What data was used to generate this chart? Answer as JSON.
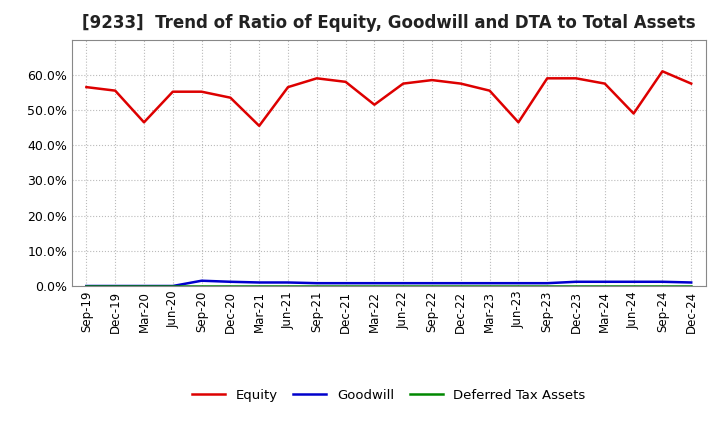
{
  "title": "[9233]  Trend of Ratio of Equity, Goodwill and DTA to Total Assets",
  "x_labels": [
    "Sep-19",
    "Dec-19",
    "Mar-20",
    "Jun-20",
    "Sep-20",
    "Dec-20",
    "Mar-21",
    "Jun-21",
    "Sep-21",
    "Dec-21",
    "Mar-22",
    "Jun-22",
    "Sep-22",
    "Dec-22",
    "Mar-23",
    "Jun-23",
    "Sep-23",
    "Dec-23",
    "Mar-24",
    "Jun-24",
    "Sep-24",
    "Dec-24"
  ],
  "equity": [
    56.5,
    55.5,
    46.5,
    55.2,
    55.2,
    53.5,
    45.5,
    56.5,
    59.0,
    58.0,
    51.5,
    57.5,
    58.5,
    57.5,
    55.5,
    46.5,
    59.0,
    59.0,
    57.5,
    49.0,
    61.0,
    57.5
  ],
  "goodwill": [
    0.0,
    0.0,
    0.0,
    0.0,
    1.5,
    1.2,
    1.0,
    1.0,
    0.8,
    0.8,
    0.8,
    0.8,
    0.8,
    0.8,
    0.8,
    0.8,
    0.8,
    1.2,
    1.2,
    1.2,
    1.2,
    1.0
  ],
  "dta": [
    0.1,
    0.1,
    0.1,
    0.1,
    0.1,
    0.1,
    0.1,
    0.1,
    0.1,
    0.1,
    0.1,
    0.1,
    0.1,
    0.1,
    0.1,
    0.1,
    0.1,
    0.1,
    0.1,
    0.1,
    0.1,
    0.1
  ],
  "equity_color": "#dd0000",
  "goodwill_color": "#0000cc",
  "dta_color": "#008800",
  "background_color": "#ffffff",
  "plot_bg_color": "#ffffff",
  "grid_color": "#bbbbbb",
  "ylim": [
    0,
    70
  ],
  "yticks": [
    0,
    10,
    20,
    30,
    40,
    50,
    60
  ],
  "title_fontsize": 12,
  "legend_labels": [
    "Equity",
    "Goodwill",
    "Deferred Tax Assets"
  ]
}
